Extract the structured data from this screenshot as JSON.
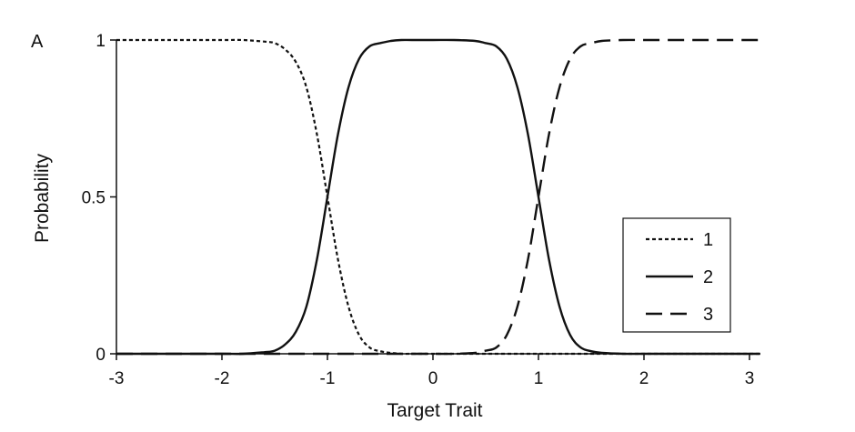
{
  "chart_data": {
    "type": "line",
    "panel_label": "A",
    "title": "",
    "xlabel": "Target Trait",
    "ylabel": "Probability",
    "xlim": [
      -3,
      3.1
    ],
    "ylim": [
      0,
      1
    ],
    "xticks": [
      -3,
      -2,
      -1,
      0,
      1,
      2,
      3
    ],
    "xtick_labels": [
      "-3",
      "-2",
      "-1",
      "0",
      "1",
      "2",
      "3"
    ],
    "yticks": [
      0,
      0.5,
      1
    ],
    "ytick_labels": [
      "0",
      "0.5",
      "1"
    ],
    "grid": false,
    "legend_position": "lower-right",
    "x": [
      -3.0,
      -2.5,
      -2.0,
      -1.8,
      -1.6,
      -1.5,
      -1.4,
      -1.3,
      -1.2,
      -1.1,
      -1.0,
      -0.9,
      -0.8,
      -0.7,
      -0.6,
      -0.5,
      -0.4,
      -0.3,
      -0.2,
      0.0,
      0.2,
      0.4,
      0.5,
      0.6,
      0.7,
      0.8,
      0.9,
      1.0,
      1.1,
      1.2,
      1.3,
      1.4,
      1.5,
      1.6,
      1.8,
      2.0,
      2.5,
      3.0,
      3.1
    ],
    "series": [
      {
        "name": "1",
        "line_style": "dotted",
        "values": [
          1.0,
          1.0,
          1.0,
          1.0,
          0.995,
          0.99,
          0.97,
          0.93,
          0.85,
          0.7,
          0.5,
          0.3,
          0.15,
          0.06,
          0.02,
          0.008,
          0.003,
          0.0,
          0.0,
          0.0,
          0.0,
          0.0,
          0.0,
          0.0,
          0.0,
          0.0,
          0.0,
          0.0,
          0.0,
          0.0,
          0.0,
          0.0,
          0.0,
          0.0,
          0.0,
          0.0,
          0.0,
          0.0,
          0.0
        ]
      },
      {
        "name": "2",
        "line_style": "solid",
        "values": [
          0.0,
          0.0,
          0.0,
          0.0,
          0.005,
          0.01,
          0.03,
          0.07,
          0.15,
          0.3,
          0.5,
          0.7,
          0.85,
          0.94,
          0.98,
          0.99,
          0.997,
          1.0,
          1.0,
          1.0,
          1.0,
          0.997,
          0.99,
          0.98,
          0.94,
          0.85,
          0.7,
          0.5,
          0.3,
          0.15,
          0.06,
          0.02,
          0.008,
          0.003,
          0.0,
          0.0,
          0.0,
          0.0,
          0.0
        ]
      },
      {
        "name": "3",
        "line_style": "dashed",
        "values": [
          0.0,
          0.0,
          0.0,
          0.0,
          0.0,
          0.0,
          0.0,
          0.0,
          0.0,
          0.0,
          0.0,
          0.0,
          0.0,
          0.0,
          0.0,
          0.0,
          0.0,
          0.0,
          0.0,
          0.0,
          0.0,
          0.003,
          0.01,
          0.02,
          0.06,
          0.15,
          0.3,
          0.5,
          0.7,
          0.85,
          0.94,
          0.98,
          0.99,
          0.997,
          1.0,
          1.0,
          1.0,
          1.0,
          1.0
        ]
      }
    ]
  }
}
